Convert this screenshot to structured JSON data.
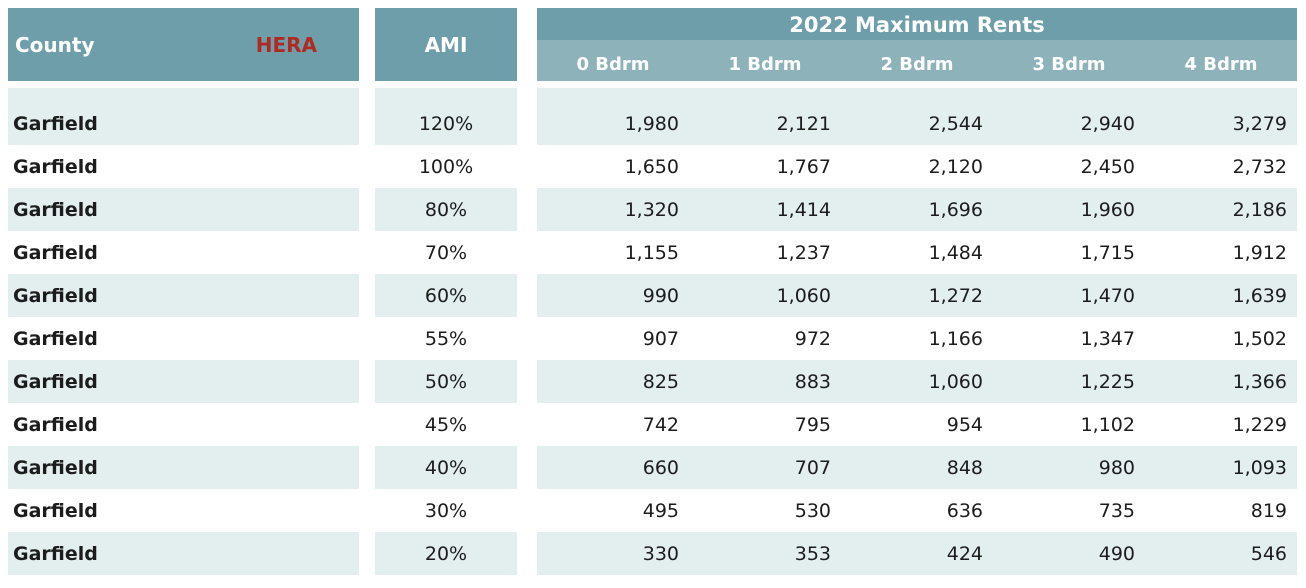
{
  "header": {
    "county_label": "County",
    "hera_label": "HERA",
    "ami_label": "AMI",
    "rents_title": "2022 Maximum Rents",
    "bedroom_columns": [
      "0 Bdrm",
      "1 Bdrm",
      "2 Bdrm",
      "3 Bdrm",
      "4 Bdrm"
    ]
  },
  "colors": {
    "header_teal": "#6E9EA9",
    "subheader_teal": "#8EB2BA",
    "row_tint": "#E3EEEF",
    "hera_red": "#AF2A23",
    "text": "#1C1C1C"
  },
  "chart_data": {
    "type": "table",
    "title": "2022 Maximum Rents",
    "columns": [
      "County",
      "AMI",
      "0 Bdrm",
      "1 Bdrm",
      "2 Bdrm",
      "3 Bdrm",
      "4 Bdrm"
    ],
    "rows": [
      {
        "county": "Garfield",
        "ami": "120%",
        "rents": [
          "1,980",
          "2,121",
          "2,544",
          "2,940",
          "3,279"
        ]
      },
      {
        "county": "Garfield",
        "ami": "100%",
        "rents": [
          "1,650",
          "1,767",
          "2,120",
          "2,450",
          "2,732"
        ]
      },
      {
        "county": "Garfield",
        "ami": "80%",
        "rents": [
          "1,320",
          "1,414",
          "1,696",
          "1,960",
          "2,186"
        ]
      },
      {
        "county": "Garfield",
        "ami": "70%",
        "rents": [
          "1,155",
          "1,237",
          "1,484",
          "1,715",
          "1,912"
        ]
      },
      {
        "county": "Garfield",
        "ami": "60%",
        "rents": [
          "990",
          "1,060",
          "1,272",
          "1,470",
          "1,639"
        ]
      },
      {
        "county": "Garfield",
        "ami": "55%",
        "rents": [
          "907",
          "972",
          "1,166",
          "1,347",
          "1,502"
        ]
      },
      {
        "county": "Garfield",
        "ami": "50%",
        "rents": [
          "825",
          "883",
          "1,060",
          "1,225",
          "1,366"
        ]
      },
      {
        "county": "Garfield",
        "ami": "45%",
        "rents": [
          "742",
          "795",
          "954",
          "1,102",
          "1,229"
        ]
      },
      {
        "county": "Garfield",
        "ami": "40%",
        "rents": [
          "660",
          "707",
          "848",
          "980",
          "1,093"
        ]
      },
      {
        "county": "Garfield",
        "ami": "30%",
        "rents": [
          "495",
          "530",
          "636",
          "735",
          "819"
        ]
      },
      {
        "county": "Garfield",
        "ami": "20%",
        "rents": [
          "330",
          "353",
          "424",
          "490",
          "546"
        ]
      }
    ]
  }
}
